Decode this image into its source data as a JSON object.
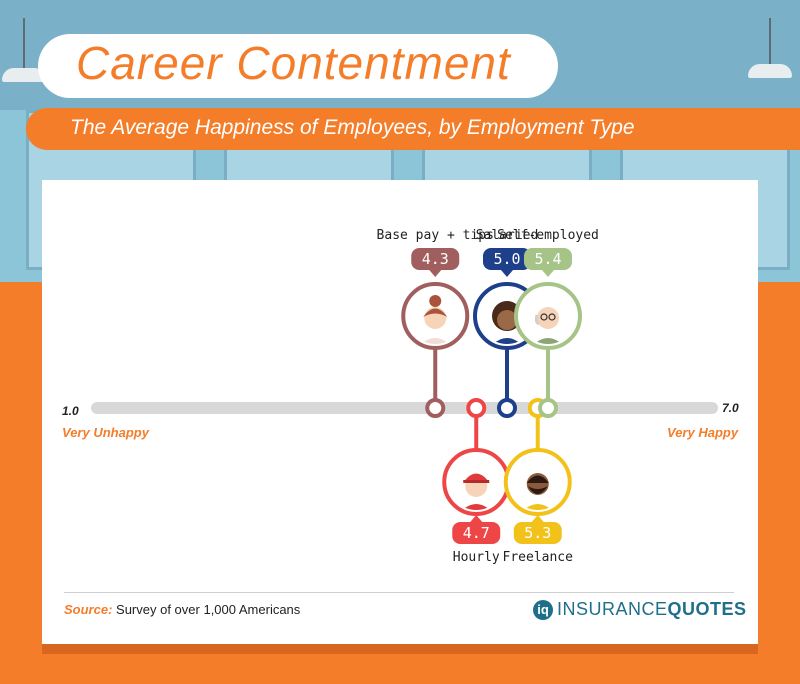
{
  "header": {
    "title": "Career Contentment",
    "subtitle": "The Average Happiness of Employees, by Employment Type"
  },
  "scale": {
    "min_label": "1.0",
    "max_label": "7.0",
    "min_desc": "Very Unhappy",
    "max_desc": "Very Happy"
  },
  "footer": {
    "source_label": "Source:",
    "source_text": "Survey of over 1,000 Americans",
    "logo_text_a": "INSURANCE",
    "logo_text_b": "QUOTES",
    "logo_mark": "iq"
  },
  "colors": {
    "accent": "#f47d2a",
    "track": "#d8d8d8"
  },
  "chart_data": {
    "type": "scatter",
    "title": "The Average Happiness of Employees, by Employment Type",
    "xlim": [
      1.0,
      7.0
    ],
    "series": [
      {
        "name": "Base pay + tips",
        "value": 4.3,
        "label": "4.3",
        "position": "above",
        "color": "#a05e5e",
        "icon": "woman-bun-avatar"
      },
      {
        "name": "Hourly",
        "value": 4.7,
        "label": "4.7",
        "position": "below",
        "color": "#ee4646",
        "icon": "cap-worker-avatar"
      },
      {
        "name": "Salaried",
        "value": 5.0,
        "label": "5.0",
        "position": "above",
        "color": "#1e3f8a",
        "icon": "curly-hair-avatar"
      },
      {
        "name": "Freelance",
        "value": 5.3,
        "label": "5.3",
        "position": "below",
        "color": "#f2c21b",
        "icon": "bearded-avatar"
      },
      {
        "name": "Self-employed",
        "value": 5.4,
        "label": "5.4",
        "position": "above",
        "color": "#a7c488",
        "icon": "bald-glasses-avatar"
      }
    ]
  }
}
